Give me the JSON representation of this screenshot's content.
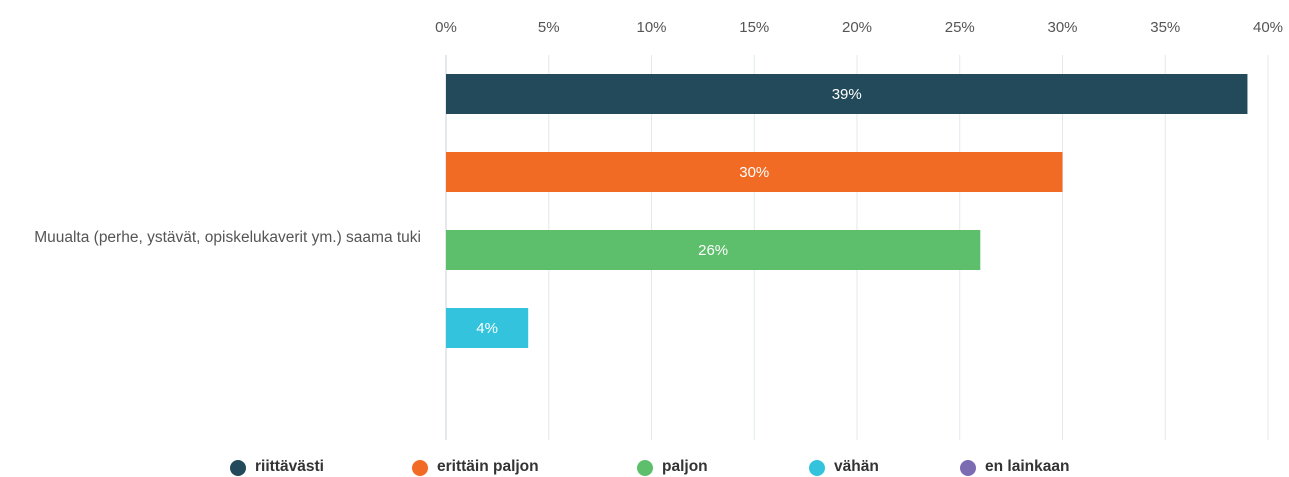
{
  "chart_data": {
    "type": "bar",
    "orientation": "horizontal",
    "categories": [
      "Muualta (perhe, ystävät, opiskelukaverit ym.) saama tuki"
    ],
    "series": [
      {
        "name": "riittävästi",
        "color": "#224a5a",
        "values": [
          39
        ],
        "value_labels": [
          "39%"
        ]
      },
      {
        "name": "erittäin paljon",
        "color": "#f26b24",
        "values": [
          30
        ],
        "value_labels": [
          "30%"
        ]
      },
      {
        "name": "paljon",
        "color": "#5dbe6b",
        "values": [
          26
        ],
        "value_labels": [
          "26%"
        ]
      },
      {
        "name": "vähän",
        "color": "#33c3dc",
        "values": [
          4
        ],
        "value_labels": [
          "4%"
        ]
      },
      {
        "name": "en lainkaan",
        "color": "#7b6bb3",
        "values": [
          null
        ]
      }
    ],
    "xlim": [
      0,
      40
    ],
    "xticks": [
      {
        "value": 0,
        "label": "0%"
      },
      {
        "value": 5,
        "label": "5%"
      },
      {
        "value": 10,
        "label": "10%"
      },
      {
        "value": 15,
        "label": "15%"
      },
      {
        "value": 20,
        "label": "20%"
      },
      {
        "value": 25,
        "label": "25%"
      },
      {
        "value": 30,
        "label": "30%"
      },
      {
        "value": 35,
        "label": "35%"
      },
      {
        "value": 40,
        "label": "40%"
      }
    ],
    "grid": true,
    "legend": "bottom"
  }
}
